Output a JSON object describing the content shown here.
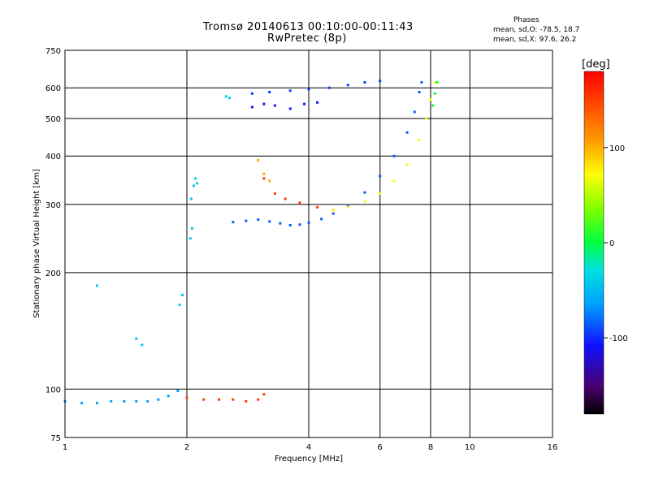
{
  "header": {
    "title_line1": "Tromsø 20140613 00:10:00-00:11:43",
    "title_line2": "RwPretec (8p)",
    "phases_title": "Phases",
    "phases_o": "mean, sd,O: -78.5, 18.7",
    "phases_x": "mean, sd,X:  97.6, 26.2"
  },
  "colorbar": {
    "label": "[deg]",
    "ticks": [
      {
        "value": 100,
        "label": "100"
      },
      {
        "value": 0,
        "label": "0"
      },
      {
        "value": -100,
        "label": "-100"
      }
    ],
    "range": [
      -180,
      180
    ]
  },
  "chart_data": {
    "type": "scatter",
    "title": "Tromsø 20140613 00:10:00-00:11:43",
    "subtitle": "RwPretec (8p)",
    "xlabel": "Frequency [MHz]",
    "ylabel": "Stationary phase Virtual Height [km]",
    "xscale": "log",
    "yscale": "log",
    "xlim": [
      1,
      16
    ],
    "ylim": [
      75,
      750
    ],
    "xticks": [
      1,
      2,
      4,
      6,
      8,
      10,
      16
    ],
    "xtick_labels": [
      "1",
      "2",
      "4",
      "6",
      "8",
      "10",
      "16"
    ],
    "yticks": [
      75,
      100,
      200,
      300,
      400,
      500,
      600,
      750
    ],
    "ytick_labels": [
      "75",
      "100",
      "200",
      "300",
      "400",
      "500",
      "600",
      "750"
    ],
    "grid": true,
    "color_variable": "phase [deg]",
    "traces": [
      {
        "phase": -65,
        "points": [
          [
            1.0,
            93
          ],
          [
            1.1,
            92
          ],
          [
            1.2,
            92
          ],
          [
            1.3,
            93
          ],
          [
            1.4,
            93
          ],
          [
            1.5,
            93
          ],
          [
            1.6,
            93
          ],
          [
            1.7,
            94
          ],
          [
            1.8,
            96
          ],
          [
            1.9,
            99
          ]
        ]
      },
      {
        "phase": 150,
        "points": [
          [
            2.0,
            95
          ],
          [
            2.2,
            94
          ],
          [
            2.4,
            94
          ],
          [
            2.6,
            94
          ],
          [
            2.8,
            93
          ],
          [
            3.0,
            94
          ],
          [
            3.1,
            97
          ]
        ]
      },
      {
        "phase": -85,
        "points": [
          [
            2.6,
            270
          ],
          [
            2.8,
            272
          ],
          [
            3.0,
            274
          ],
          [
            3.2,
            271
          ],
          [
            3.4,
            268
          ],
          [
            3.6,
            265
          ],
          [
            3.8,
            266
          ],
          [
            4.0,
            269
          ],
          [
            4.3,
            275
          ],
          [
            4.6,
            284
          ],
          [
            5.0,
            298
          ],
          [
            5.5,
            322
          ],
          [
            6.0,
            355
          ],
          [
            6.5,
            400
          ],
          [
            7.0,
            460
          ],
          [
            7.3,
            520
          ],
          [
            7.5,
            585
          ],
          [
            7.6,
            620
          ]
        ]
      },
      {
        "phase": 150,
        "points": [
          [
            3.1,
            350
          ],
          [
            3.3,
            320
          ],
          [
            3.5,
            310
          ],
          [
            3.8,
            303
          ],
          [
            4.2,
            295
          ],
          [
            4.6,
            290
          ]
        ]
      },
      {
        "phase": 70,
        "points": [
          [
            4.6,
            290
          ],
          [
            5.0,
            295
          ],
          [
            5.5,
            305
          ],
          [
            6.0,
            320
          ],
          [
            6.5,
            345
          ],
          [
            7.0,
            380
          ],
          [
            7.5,
            440
          ],
          [
            7.8,
            500
          ],
          [
            8.0,
            560
          ],
          [
            8.2,
            620
          ]
        ]
      },
      {
        "phase": 100,
        "points": [
          [
            3.0,
            390
          ],
          [
            3.1,
            360
          ],
          [
            3.2,
            345
          ]
        ]
      },
      {
        "phase": 0,
        "points": [
          [
            8.1,
            540
          ],
          [
            8.2,
            580
          ],
          [
            8.3,
            620
          ]
        ]
      },
      {
        "phase": -95,
        "points": [
          [
            2.9,
            580
          ],
          [
            3.2,
            585
          ],
          [
            3.6,
            590
          ],
          [
            4.0,
            595
          ],
          [
            4.5,
            600
          ],
          [
            5.0,
            610
          ],
          [
            5.5,
            620
          ],
          [
            6.0,
            625
          ]
        ]
      },
      {
        "phase": -105,
        "points": [
          [
            2.9,
            535
          ],
          [
            3.1,
            545
          ],
          [
            3.3,
            540
          ],
          [
            3.6,
            530
          ],
          [
            3.9,
            545
          ],
          [
            4.2,
            550
          ]
        ]
      },
      {
        "phase": -40,
        "points": [
          [
            2.05,
            310
          ],
          [
            2.08,
            335
          ],
          [
            2.1,
            350
          ],
          [
            2.12,
            340
          ],
          [
            2.06,
            260
          ],
          [
            2.04,
            245
          ],
          [
            1.95,
            175
          ],
          [
            1.92,
            165
          ]
        ]
      },
      {
        "phase": -40,
        "points": [
          [
            2.5,
            570
          ],
          [
            2.55,
            565
          ],
          [
            1.5,
            135
          ],
          [
            1.55,
            130
          ],
          [
            1.2,
            185
          ]
        ]
      }
    ]
  }
}
